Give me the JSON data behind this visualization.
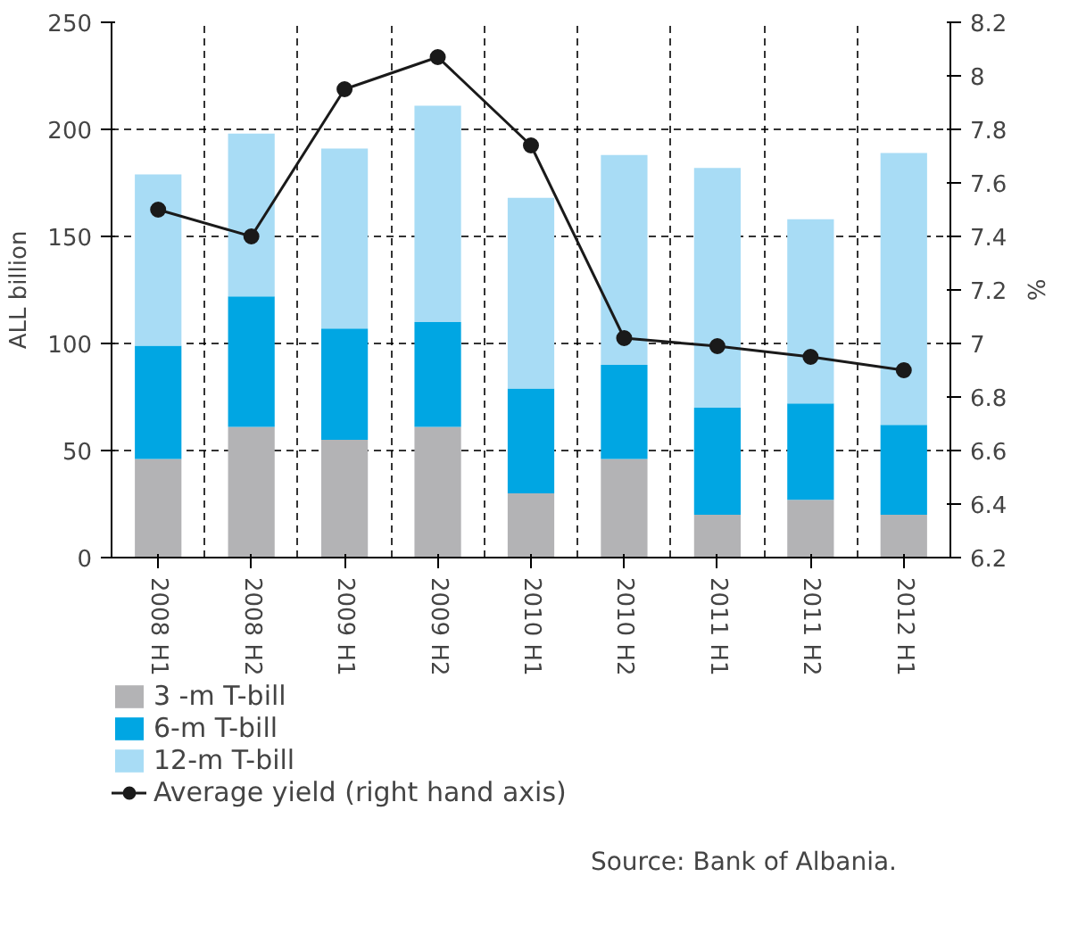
{
  "chart_data": {
    "type": "bar",
    "stacked": true,
    "ylabel": "ALL billion",
    "y2label": "%",
    "categories": [
      "2008 H1",
      "2008 H2",
      "2009 H1",
      "2009 H2",
      "2010 H1",
      "2010 H2",
      "2011 H1",
      "2011 H2",
      "2012 H1"
    ],
    "series": [
      {
        "name": "3 -m T-bill",
        "color": "#b3b3b5",
        "values": [
          46,
          61,
          55,
          61,
          30,
          46,
          20,
          27,
          20
        ]
      },
      {
        "name": "6-m T-bill",
        "color": "#00a6e3",
        "values": [
          53,
          61,
          52,
          49,
          49,
          44,
          50,
          45,
          42
        ]
      },
      {
        "name": "12-m T-bill",
        "color": "#a8dcf5",
        "values": [
          80,
          76,
          84,
          101,
          89,
          98,
          112,
          86,
          127
        ]
      },
      {
        "name": "Average yield (right hand axis)",
        "type": "line",
        "axis": "y2",
        "color": "#1a1a1a",
        "marker": "circle",
        "values": [
          7.5,
          7.4,
          7.95,
          8.07,
          7.74,
          7.02,
          6.99,
          6.95,
          6.9
        ]
      }
    ],
    "ylim": [
      0,
      250
    ],
    "yticks": [
      0,
      50,
      100,
      150,
      200,
      250
    ],
    "y2lim": [
      6.2,
      8.2
    ],
    "y2ticks": [
      6.2,
      6.4,
      6.6,
      6.8,
      7,
      7.2,
      7.4,
      7.6,
      7.8,
      8,
      8.2
    ],
    "grid": true,
    "legend": "bottom left",
    "annotations": [
      "Source: Bank of Albania."
    ]
  }
}
